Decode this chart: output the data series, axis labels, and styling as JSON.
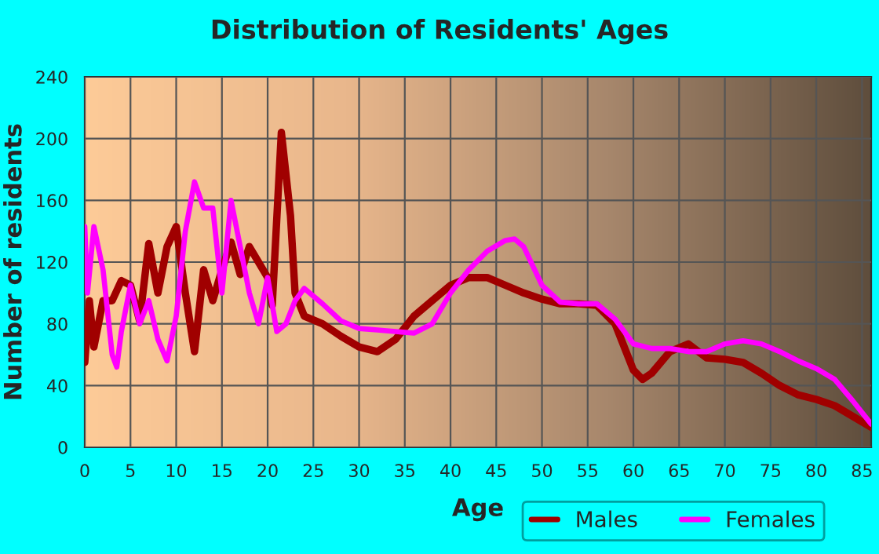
{
  "chart_data": {
    "type": "line",
    "title": "Distribution of Residents' Ages",
    "xlabel": "Age",
    "ylabel": "Number of residents",
    "xlim": [
      0,
      86
    ],
    "xticks": [
      0,
      5,
      10,
      15,
      20,
      25,
      30,
      35,
      40,
      45,
      50,
      55,
      60,
      65,
      70,
      75,
      80,
      85
    ],
    "ylim": [
      0,
      240
    ],
    "yticks": [
      0,
      40,
      80,
      120,
      160,
      200,
      240
    ],
    "grid": true,
    "legend": "bottom right",
    "line_style": "solid",
    "series": [
      {
        "name": "Males",
        "color": "#a00000",
        "x": [
          0,
          0.5,
          1,
          2,
          3,
          4,
          5,
          6,
          7,
          8,
          9,
          10,
          11,
          12,
          13,
          14,
          15,
          16,
          17,
          18,
          19,
          20,
          20.5,
          21.5,
          22.5,
          23,
          24,
          26,
          28,
          30,
          32,
          34,
          36,
          38,
          40,
          42,
          44,
          46,
          48,
          50,
          52,
          54,
          56,
          58,
          60,
          61,
          62,
          64,
          66,
          68,
          70,
          72,
          74,
          76,
          78,
          80,
          82,
          84,
          86
        ],
        "values": [
          55,
          95,
          65,
          95,
          95,
          108,
          105,
          82,
          132,
          100,
          130,
          143,
          100,
          62,
          115,
          95,
          115,
          133,
          112,
          130,
          120,
          110,
          92,
          204,
          150,
          100,
          85,
          80,
          72,
          65,
          62,
          70,
          85,
          95,
          105,
          110,
          110,
          105,
          100,
          96,
          93,
          93,
          92,
          80,
          50,
          44,
          48,
          62,
          67,
          58,
          57,
          55,
          48,
          40,
          34,
          31,
          27,
          20,
          13
        ]
      },
      {
        "name": "Females",
        "color": "#ff00ff",
        "x": [
          0,
          0.3,
          1,
          2,
          3,
          3.5,
          4,
          5,
          6,
          7,
          8,
          9,
          10,
          11,
          12,
          13,
          14,
          15,
          16,
          17,
          18,
          19,
          20,
          21,
          22,
          23,
          24,
          26,
          28,
          30,
          32,
          34,
          36,
          38,
          40,
          42,
          44,
          46,
          47,
          48,
          50,
          52,
          54,
          56,
          58,
          60,
          62,
          64,
          66,
          68,
          70,
          72,
          74,
          76,
          78,
          80,
          82,
          84,
          86
        ],
        "values": [
          143,
          100,
          143,
          115,
          60,
          52,
          75,
          105,
          80,
          95,
          70,
          56,
          85,
          140,
          172,
          155,
          155,
          100,
          160,
          130,
          100,
          80,
          110,
          75,
          80,
          95,
          103,
          93,
          82,
          77,
          76,
          75,
          74,
          80,
          100,
          115,
          127,
          134,
          135,
          130,
          105,
          94,
          93,
          93,
          83,
          67,
          64,
          64,
          62,
          62,
          67,
          69,
          67,
          62,
          56,
          51,
          44,
          30,
          15
        ]
      }
    ]
  }
}
